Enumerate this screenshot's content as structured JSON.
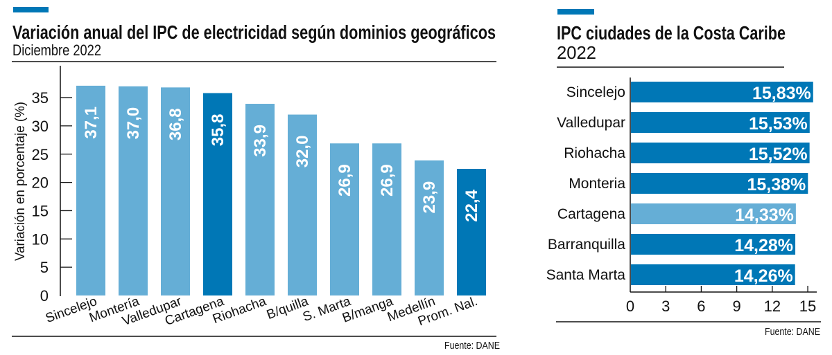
{
  "colors": {
    "light": "#65aed6",
    "dark": "#0077b6",
    "accent": "#0077b6"
  },
  "chart_data": [
    {
      "type": "bar",
      "title": "Variación anual del IPC de electricidad según dominios geográficos",
      "subtitle": "Diciembre 2022",
      "ylabel": "Variación en porcentaje (%)",
      "xlabel": "",
      "ylim": [
        0,
        40
      ],
      "yticks": [
        0,
        5,
        10,
        15,
        20,
        25,
        30,
        35
      ],
      "categories": [
        "Sincelejo",
        "Montería",
        "Valledupar",
        "Cartagena",
        "Riohacha",
        "B/quilla",
        "S. Marta",
        "B/manga",
        "Medellín",
        "Prom. Nal."
      ],
      "values": [
        37.1,
        37.0,
        36.8,
        35.8,
        33.9,
        32.0,
        26.9,
        26.9,
        23.9,
        22.4
      ],
      "labels": [
        "37,1",
        "37,0",
        "36,8",
        "35,8",
        "33,9",
        "32,0",
        "26,9",
        "26,9",
        "23,9",
        "22,4"
      ],
      "highlight": [
        false,
        false,
        false,
        true,
        false,
        false,
        false,
        false,
        false,
        true
      ],
      "source": "Fuente: DANE"
    },
    {
      "type": "bar",
      "orientation": "horizontal",
      "title": "IPC ciudades de la Costa Caribe",
      "subtitle": "2022",
      "xlim": [
        0,
        15.5
      ],
      "xticks": [
        0,
        3,
        6,
        9,
        12,
        15
      ],
      "categories": [
        "Sincelejo",
        "Valledupar",
        "Riohacha",
        "Monteria",
        "Cartagena",
        "Barranquilla",
        "Santa Marta"
      ],
      "values": [
        15.83,
        15.53,
        15.52,
        15.38,
        14.33,
        14.28,
        14.26
      ],
      "labels": [
        "15,83%",
        "15,53%",
        "15,52%",
        "15,38%",
        "14,33%",
        "14,28%",
        "14,26%"
      ],
      "highlight": [
        true,
        true,
        true,
        true,
        false,
        true,
        true
      ],
      "source": "Fuente: DANE"
    }
  ]
}
